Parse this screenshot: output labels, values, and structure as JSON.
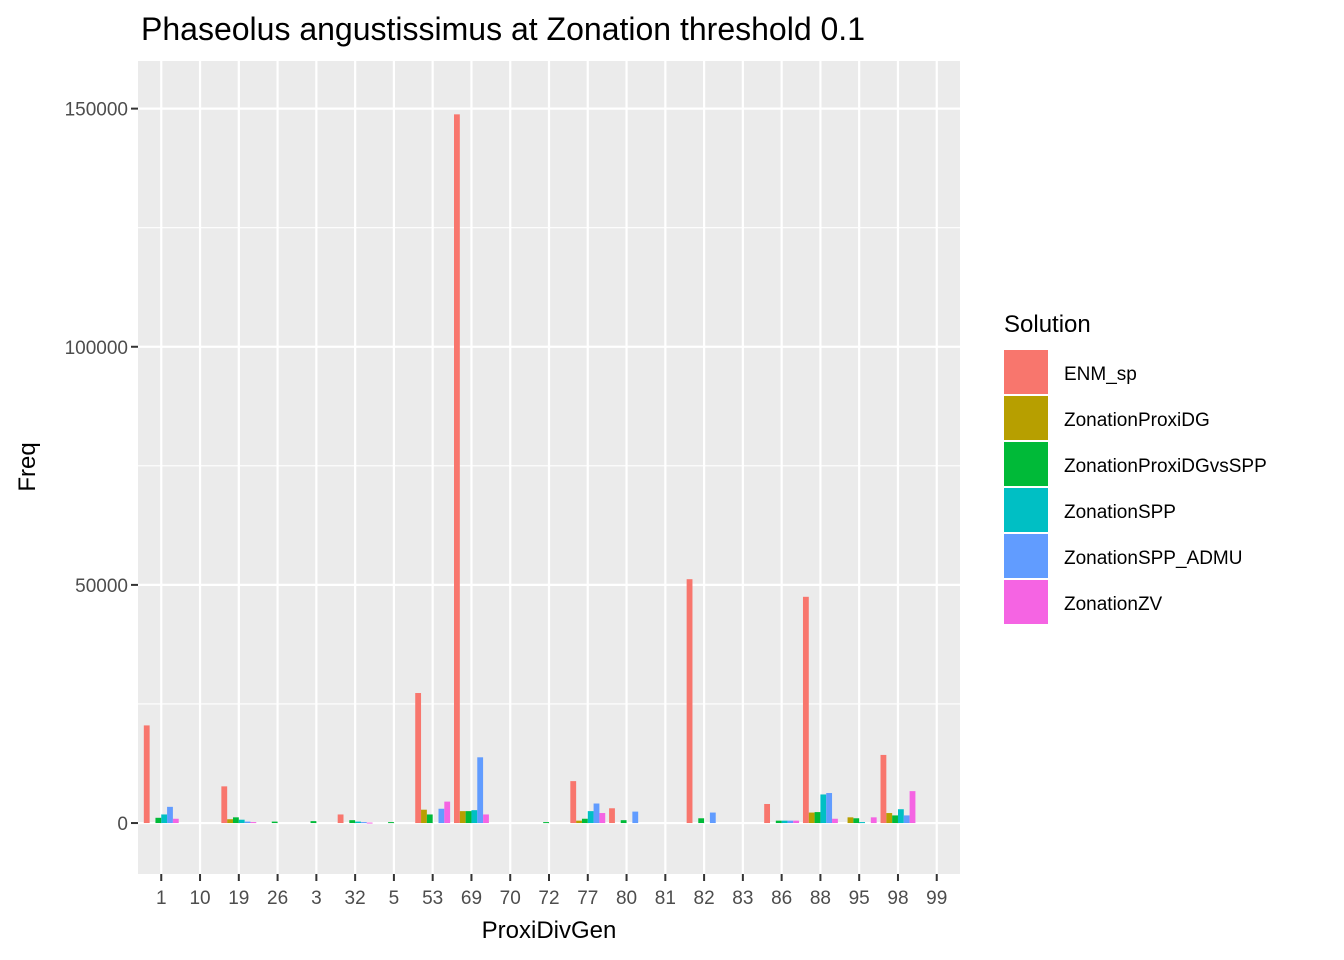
{
  "chart_data": {
    "type": "bar",
    "title": "Phaseolus angustissimus at Zonation threshold 0.1",
    "xlabel": "ProxiDivGen",
    "ylabel": "Freq",
    "ylim": [
      -10700,
      160000
    ],
    "yticks": [
      0,
      50000,
      100000,
      150000
    ],
    "ytick_labels": [
      "0",
      "50000",
      "100000",
      "150000"
    ],
    "grid": true,
    "legend_position": "right",
    "legend_title": "Solution",
    "categories": [
      "1",
      "10",
      "19",
      "26",
      "3",
      "32",
      "5",
      "53",
      "69",
      "70",
      "72",
      "77",
      "80",
      "81",
      "82",
      "83",
      "86",
      "88",
      "95",
      "98",
      "99"
    ],
    "series": [
      {
        "name": "ENM_sp",
        "color": "#F8766D",
        "values": [
          20500,
          0,
          7700,
          0,
          0,
          1800,
          0,
          27300,
          148800,
          0,
          0,
          8800,
          3100,
          0,
          51200,
          0,
          4000,
          47500,
          0,
          14300,
          0
        ]
      },
      {
        "name": "ZonationProxiDG",
        "color": "#B79F00",
        "values": [
          0,
          0,
          800,
          0,
          0,
          0,
          0,
          2800,
          2500,
          0,
          0,
          500,
          0,
          0,
          0,
          0,
          0,
          2200,
          1200,
          2100,
          0
        ]
      },
      {
        "name": "ZonationProxiDGvsSPP",
        "color": "#00BA38",
        "values": [
          1100,
          0,
          1200,
          300,
          400,
          600,
          200,
          1800,
          2500,
          0,
          200,
          900,
          600,
          0,
          1000,
          0,
          500,
          2300,
          1000,
          1600,
          0
        ]
      },
      {
        "name": "ZonationSPP",
        "color": "#00BFC4",
        "values": [
          1800,
          0,
          700,
          0,
          0,
          300,
          0,
          0,
          2700,
          0,
          0,
          2500,
          0,
          0,
          0,
          0,
          500,
          6000,
          200,
          2900,
          0
        ]
      },
      {
        "name": "ZonationSPP_ADMU",
        "color": "#619CFF",
        "values": [
          3400,
          0,
          300,
          0,
          0,
          200,
          0,
          3000,
          13800,
          0,
          0,
          4100,
          2400,
          0,
          2200,
          0,
          500,
          6300,
          0,
          1600,
          0
        ]
      },
      {
        "name": "ZonationZV",
        "color": "#F564E3",
        "values": [
          900,
          0,
          200,
          0,
          0,
          100,
          0,
          4500,
          1800,
          0,
          0,
          2100,
          0,
          0,
          0,
          0,
          500,
          900,
          1200,
          6700,
          0
        ]
      }
    ]
  }
}
